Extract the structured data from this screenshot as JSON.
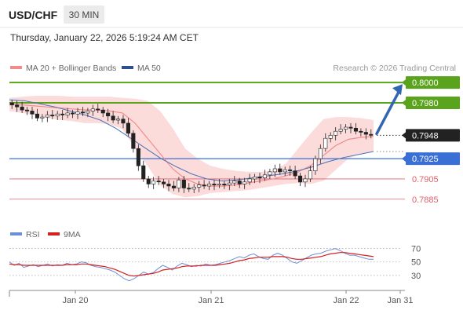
{
  "header": {
    "symbol": "USD/CHF",
    "timeframe": "30 MIN",
    "timestamp": "Thursday, January 22, 2026 5:19:24 AM CET"
  },
  "legend": {
    "ma20_label": "MA 20 + Bollinger Bands",
    "ma50_label": "MA 50",
    "attribution": "Research © 2026 Trading Central",
    "rsi_label": "RSI",
    "rsi_ma_label": "9MA"
  },
  "colors": {
    "ma20": "#f28c8c",
    "bollinger_fill": "#fcd5d5",
    "ma50": "#4a72b8",
    "resistance": "#5aa31c",
    "support": "#3a70d6",
    "support_lower": "#e0606a",
    "candle": "#222222",
    "arrow": "#3366b0",
    "rsi": "#6b8fd6",
    "rsi_ma": "#d42020"
  },
  "chart_data": [
    {
      "type": "candlestick",
      "title": "USD/CHF",
      "x_ticks": [
        "Jan 20",
        "Jan 21",
        "Jan 22",
        "Jan 31"
      ],
      "ylim": [
        0.7874,
        0.8004
      ],
      "series": [
        {
          "name": "MA 20 + Bollinger Bands"
        },
        {
          "name": "MA 50"
        }
      ],
      "candles_close": [
        0.7978,
        0.7976,
        0.7973,
        0.7972,
        0.7969,
        0.7965,
        0.7966,
        0.7968,
        0.7967,
        0.7969,
        0.7968,
        0.797,
        0.7969,
        0.7971,
        0.797,
        0.7972,
        0.7974,
        0.7973,
        0.797,
        0.7967,
        0.7963,
        0.7964,
        0.796,
        0.795,
        0.7935,
        0.7918,
        0.7905,
        0.79,
        0.7903,
        0.7902,
        0.79,
        0.7898,
        0.7896,
        0.7904,
        0.7896,
        0.7895,
        0.7897,
        0.7899,
        0.7898,
        0.79,
        0.7899,
        0.79,
        0.7899,
        0.7901,
        0.7903,
        0.79,
        0.7902,
        0.7905,
        0.7907,
        0.7906,
        0.7909,
        0.7912,
        0.7915,
        0.7912,
        0.7914,
        0.7913,
        0.7908,
        0.7902,
        0.7905,
        0.7913,
        0.7925,
        0.7935,
        0.7945,
        0.7948,
        0.7952,
        0.7954,
        0.7956,
        0.7955,
        0.7952,
        0.7951,
        0.7949,
        0.7948
      ],
      "bollinger": {
        "upper": [
          0.7985,
          0.7986,
          0.7987,
          0.7987,
          0.7987,
          0.7986,
          0.7986,
          0.7986,
          0.7986,
          0.7985,
          0.7984,
          0.7982,
          0.7972,
          0.7955,
          0.7935,
          0.7925,
          0.7918,
          0.7915,
          0.7913,
          0.7912,
          0.7912,
          0.7913,
          0.792,
          0.7935,
          0.795,
          0.7964,
          0.7966,
          0.7966,
          0.7965,
          0.7963
        ],
        "lower": [
          0.7972,
          0.797,
          0.7968,
          0.7965,
          0.7963,
          0.7962,
          0.796,
          0.796,
          0.7959,
          0.7954,
          0.7935,
          0.7918,
          0.7899,
          0.789,
          0.7887,
          0.7888,
          0.7891,
          0.7892,
          0.7893,
          0.7894,
          0.7896,
          0.7898,
          0.79,
          0.7901,
          0.79,
          0.7903,
          0.7914,
          0.7925,
          0.793,
          0.7932
        ],
        "middle": [
          0.7978,
          0.7978,
          0.7977,
          0.7976,
          0.7975,
          0.7974,
          0.7973,
          0.7973,
          0.7972,
          0.797,
          0.796,
          0.7945,
          0.793,
          0.7915,
          0.7905,
          0.79,
          0.7898,
          0.7898,
          0.7899,
          0.7901,
          0.7903,
          0.7905,
          0.7908,
          0.7912,
          0.7918,
          0.7928,
          0.7938,
          0.7944,
          0.7946,
          0.7947
        ]
      },
      "ma50": [
        0.7983,
        0.7982,
        0.7979,
        0.7976,
        0.7972,
        0.7968,
        0.7963,
        0.7955,
        0.7945,
        0.7935,
        0.7925,
        0.7917,
        0.791,
        0.7905,
        0.7903,
        0.7904,
        0.7906,
        0.7908,
        0.791,
        0.7913,
        0.7917,
        0.7922,
        0.7926,
        0.7929,
        0.7932
      ],
      "levels": [
        {
          "value": 0.8,
          "label": "0.8000",
          "kind": "resistance",
          "boxed": true
        },
        {
          "value": 0.798,
          "label": "0.7980",
          "kind": "resistance",
          "boxed": true
        },
        {
          "value": 0.7948,
          "label": "0.7948",
          "kind": "last",
          "boxed": true
        },
        {
          "value": 0.7925,
          "label": "0.7925",
          "kind": "support",
          "boxed": true
        },
        {
          "value": 0.7905,
          "label": "0.7905",
          "kind": "support_lower",
          "boxed": false
        },
        {
          "value": 0.7885,
          "label": "0.7885",
          "kind": "support_lower",
          "boxed": false
        }
      ],
      "forecast": {
        "from": 0.7948,
        "to": 0.8
      }
    },
    {
      "type": "line",
      "title": "RSI",
      "series": [
        {
          "name": "RSI"
        },
        {
          "name": "9MA"
        }
      ],
      "ylim": [
        10,
        80
      ],
      "y_ticks": [
        70,
        50,
        30
      ],
      "rsi": [
        50,
        45,
        48,
        42,
        44,
        46,
        43,
        45,
        47,
        44,
        46,
        45,
        48,
        46,
        47,
        50,
        49,
        45,
        43,
        42,
        40,
        38,
        35,
        30,
        25,
        22,
        25,
        30,
        35,
        32,
        34,
        40,
        45,
        42,
        38,
        44,
        48,
        46,
        43,
        45,
        44,
        47,
        45,
        46,
        48,
        50,
        52,
        55,
        58,
        56,
        60,
        62,
        58,
        55,
        54,
        60,
        63,
        60,
        55,
        50,
        48,
        52,
        56,
        60,
        62,
        63,
        66,
        68,
        70,
        67,
        63,
        60,
        60,
        58,
        56,
        54,
        54
      ],
      "rsi_ma": [
        47,
        46,
        46,
        45,
        45,
        45,
        45,
        45,
        45,
        45,
        45,
        45,
        46,
        46,
        46,
        47,
        47,
        46,
        45,
        44,
        43,
        41,
        39,
        36,
        33,
        30,
        29,
        30,
        31,
        32,
        33,
        35,
        38,
        39,
        40,
        41,
        43,
        44,
        44,
        44,
        45,
        45,
        45,
        45,
        46,
        47,
        48,
        50,
        52,
        53,
        55,
        56,
        57,
        57,
        57,
        58,
        58,
        58,
        57,
        55,
        54,
        54,
        55,
        56,
        57,
        58,
        60,
        62,
        63,
        64,
        64,
        63,
        62,
        61,
        60,
        59,
        58
      ]
    }
  ]
}
